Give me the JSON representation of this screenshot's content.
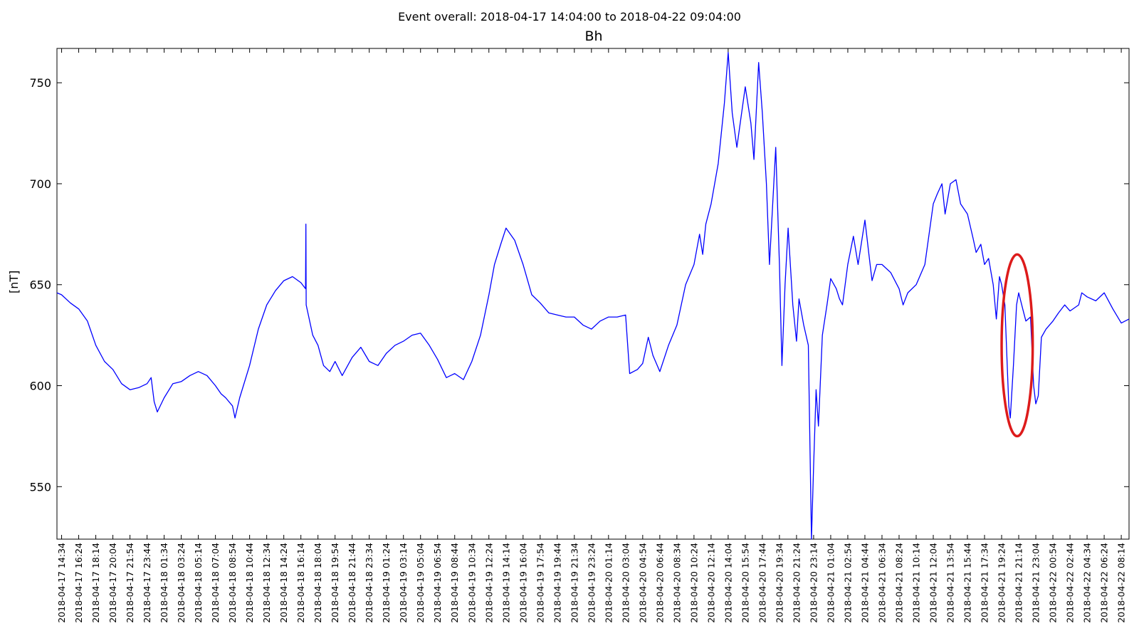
{
  "figure": {
    "suptitle": "Event overall: 2018-04-17 14:04:00 to 2018-04-22 09:04:00"
  },
  "chart_data": {
    "type": "line",
    "title": "Bh",
    "xlabel": "",
    "ylabel": "[nT]",
    "ylim": [
      524,
      767
    ],
    "yticks": [
      550,
      600,
      650,
      700,
      750
    ],
    "grid": false,
    "x_tick_labels": [
      "2018-04-17 14:34",
      "2018-04-17 16:24",
      "2018-04-17 18:14",
      "2018-04-17 20:04",
      "2018-04-17 21:54",
      "2018-04-17 23:44",
      "2018-04-18 01:34",
      "2018-04-18 03:24",
      "2018-04-18 05:14",
      "2018-04-18 07:04",
      "2018-04-18 08:54",
      "2018-04-18 10:44",
      "2018-04-18 12:34",
      "2018-04-18 14:24",
      "2018-04-18 16:14",
      "2018-04-18 18:04",
      "2018-04-18 19:54",
      "2018-04-18 21:44",
      "2018-04-18 23:34",
      "2018-04-19 01:24",
      "2018-04-19 03:14",
      "2018-04-19 05:04",
      "2018-04-19 06:54",
      "2018-04-19 08:44",
      "2018-04-19 10:34",
      "2018-04-19 12:24",
      "2018-04-19 14:14",
      "2018-04-19 16:04",
      "2018-04-19 17:54",
      "2018-04-19 19:44",
      "2018-04-19 21:34",
      "2018-04-19 23:24",
      "2018-04-20 01:14",
      "2018-04-20 03:04",
      "2018-04-20 04:54",
      "2018-04-20 06:44",
      "2018-04-20 08:34",
      "2018-04-20 10:24",
      "2018-04-20 12:14",
      "2018-04-20 14:04",
      "2018-04-20 15:54",
      "2018-04-20 17:44",
      "2018-04-20 19:34",
      "2018-04-20 21:24",
      "2018-04-20 23:14",
      "2018-04-21 01:04",
      "2018-04-21 02:54",
      "2018-04-21 04:44",
      "2018-04-21 06:34",
      "2018-04-21 08:24",
      "2018-04-21 10:14",
      "2018-04-21 12:04",
      "2018-04-21 13:54",
      "2018-04-21 15:44",
      "2018-04-21 17:34",
      "2018-04-21 19:24",
      "2018-04-21 21:14",
      "2018-04-21 23:04",
      "2018-04-22 00:54",
      "2018-04-22 02:44",
      "2018-04-22 04:34",
      "2018-04-22 06:24",
      "2018-04-22 08:14"
    ],
    "series": [
      {
        "color": "#0000ff",
        "points": [
          [
            "2018-04-17 14:04",
            646
          ],
          [
            "2018-04-17 14:34",
            645
          ],
          [
            "2018-04-17 15:30",
            641
          ],
          [
            "2018-04-17 16:24",
            638
          ],
          [
            "2018-04-17 17:20",
            632
          ],
          [
            "2018-04-17 18:14",
            620
          ],
          [
            "2018-04-17 19:10",
            612
          ],
          [
            "2018-04-17 20:04",
            608
          ],
          [
            "2018-04-17 21:00",
            601
          ],
          [
            "2018-04-17 21:54",
            598
          ],
          [
            "2018-04-17 22:50",
            599
          ],
          [
            "2018-04-17 23:44",
            601
          ],
          [
            "2018-04-18 00:10",
            604
          ],
          [
            "2018-04-18 00:30",
            592
          ],
          [
            "2018-04-18 00:50",
            587
          ],
          [
            "2018-04-18 01:34",
            594
          ],
          [
            "2018-04-18 02:30",
            601
          ],
          [
            "2018-04-18 03:24",
            602
          ],
          [
            "2018-04-18 04:20",
            605
          ],
          [
            "2018-04-18 05:14",
            607
          ],
          [
            "2018-04-18 06:10",
            605
          ],
          [
            "2018-04-18 07:04",
            600
          ],
          [
            "2018-04-18 07:40",
            596
          ],
          [
            "2018-04-18 08:10",
            594
          ],
          [
            "2018-04-18 08:54",
            590
          ],
          [
            "2018-04-18 09:10",
            584
          ],
          [
            "2018-04-18 09:40",
            594
          ],
          [
            "2018-04-18 10:44",
            610
          ],
          [
            "2018-04-18 11:40",
            628
          ],
          [
            "2018-04-18 12:34",
            640
          ],
          [
            "2018-04-18 13:30",
            647
          ],
          [
            "2018-04-18 14:24",
            652
          ],
          [
            "2018-04-18 15:20",
            654
          ],
          [
            "2018-04-18 16:14",
            651
          ],
          [
            "2018-04-18 16:44",
            648
          ],
          [
            "2018-04-18 16:46",
            680
          ],
          [
            "2018-04-18 16:48",
            640
          ],
          [
            "2018-04-18 17:30",
            625
          ],
          [
            "2018-04-18 18:04",
            620
          ],
          [
            "2018-04-18 18:40",
            610
          ],
          [
            "2018-04-18 19:20",
            607
          ],
          [
            "2018-04-18 19:54",
            612
          ],
          [
            "2018-04-18 20:40",
            605
          ],
          [
            "2018-04-18 21:44",
            614
          ],
          [
            "2018-04-18 22:40",
            619
          ],
          [
            "2018-04-18 23:34",
            612
          ],
          [
            "2018-04-19 00:30",
            610
          ],
          [
            "2018-04-19 01:24",
            616
          ],
          [
            "2018-04-19 02:20",
            620
          ],
          [
            "2018-04-19 03:14",
            622
          ],
          [
            "2018-04-19 04:10",
            625
          ],
          [
            "2018-04-19 05:04",
            626
          ],
          [
            "2018-04-19 06:00",
            620
          ],
          [
            "2018-04-19 06:54",
            613
          ],
          [
            "2018-04-19 07:50",
            604
          ],
          [
            "2018-04-19 08:44",
            606
          ],
          [
            "2018-04-19 09:40",
            603
          ],
          [
            "2018-04-19 10:34",
            612
          ],
          [
            "2018-04-19 11:30",
            625
          ],
          [
            "2018-04-19 12:24",
            645
          ],
          [
            "2018-04-19 13:00",
            660
          ],
          [
            "2018-04-19 13:40",
            670
          ],
          [
            "2018-04-19 14:14",
            678
          ],
          [
            "2018-04-19 15:10",
            672
          ],
          [
            "2018-04-19 16:04",
            660
          ],
          [
            "2018-04-19 17:00",
            645
          ],
          [
            "2018-04-19 17:54",
            641
          ],
          [
            "2018-04-19 18:50",
            636
          ],
          [
            "2018-04-19 19:44",
            635
          ],
          [
            "2018-04-19 20:40",
            634
          ],
          [
            "2018-04-19 21:34",
            634
          ],
          [
            "2018-04-19 22:30",
            630
          ],
          [
            "2018-04-19 23:24",
            628
          ],
          [
            "2018-04-20 00:20",
            632
          ],
          [
            "2018-04-20 01:14",
            634
          ],
          [
            "2018-04-20 02:10",
            634
          ],
          [
            "2018-04-20 03:04",
            635
          ],
          [
            "2018-04-20 03:30",
            606
          ],
          [
            "2018-04-20 04:20",
            608
          ],
          [
            "2018-04-20 04:54",
            611
          ],
          [
            "2018-04-20 05:30",
            624
          ],
          [
            "2018-04-20 06:00",
            615
          ],
          [
            "2018-04-20 06:44",
            607
          ],
          [
            "2018-04-20 07:40",
            620
          ],
          [
            "2018-04-20 08:34",
            630
          ],
          [
            "2018-04-20 09:30",
            650
          ],
          [
            "2018-04-20 10:24",
            660
          ],
          [
            "2018-04-20 11:00",
            675
          ],
          [
            "2018-04-20 11:20",
            665
          ],
          [
            "2018-04-20 11:40",
            680
          ],
          [
            "2018-04-20 12:14",
            690
          ],
          [
            "2018-04-20 13:00",
            710
          ],
          [
            "2018-04-20 13:40",
            740
          ],
          [
            "2018-04-20 14:04",
            765
          ],
          [
            "2018-04-20 14:30",
            735
          ],
          [
            "2018-04-20 15:00",
            718
          ],
          [
            "2018-04-20 15:54",
            748
          ],
          [
            "2018-04-20 16:30",
            730
          ],
          [
            "2018-04-20 16:50",
            712
          ],
          [
            "2018-04-20 17:20",
            760
          ],
          [
            "2018-04-20 17:44",
            735
          ],
          [
            "2018-04-20 18:10",
            700
          ],
          [
            "2018-04-20 18:30",
            660
          ],
          [
            "2018-04-20 19:10",
            718
          ],
          [
            "2018-04-20 19:34",
            660
          ],
          [
            "2018-04-20 19:50",
            610
          ],
          [
            "2018-04-20 20:10",
            650
          ],
          [
            "2018-04-20 20:30",
            678
          ],
          [
            "2018-04-20 21:00",
            640
          ],
          [
            "2018-04-20 21:24",
            622
          ],
          [
            "2018-04-20 21:40",
            643
          ],
          [
            "2018-04-20 22:10",
            630
          ],
          [
            "2018-04-20 22:40",
            620
          ],
          [
            "2018-04-20 22:55",
            548
          ],
          [
            "2018-04-20 23:00",
            524
          ],
          [
            "2018-04-20 23:14",
            560
          ],
          [
            "2018-04-20 23:30",
            598
          ],
          [
            "2018-04-20 23:45",
            580
          ],
          [
            "2018-04-21 00:10",
            625
          ],
          [
            "2018-04-21 00:40",
            640
          ],
          [
            "2018-04-21 01:04",
            653
          ],
          [
            "2018-04-21 01:40",
            648
          ],
          [
            "2018-04-21 02:00",
            643
          ],
          [
            "2018-04-21 02:20",
            640
          ],
          [
            "2018-04-21 02:54",
            660
          ],
          [
            "2018-04-21 03:30",
            674
          ],
          [
            "2018-04-21 04:00",
            660
          ],
          [
            "2018-04-21 04:44",
            682
          ],
          [
            "2018-04-21 05:10",
            665
          ],
          [
            "2018-04-21 05:30",
            652
          ],
          [
            "2018-04-21 06:00",
            660
          ],
          [
            "2018-04-21 06:34",
            660
          ],
          [
            "2018-04-21 07:30",
            656
          ],
          [
            "2018-04-21 08:24",
            648
          ],
          [
            "2018-04-21 08:50",
            640
          ],
          [
            "2018-04-21 09:20",
            646
          ],
          [
            "2018-04-21 10:14",
            650
          ],
          [
            "2018-04-21 11:10",
            660
          ],
          [
            "2018-04-21 12:04",
            690
          ],
          [
            "2018-04-21 12:30",
            695
          ],
          [
            "2018-04-21 13:00",
            700
          ],
          [
            "2018-04-21 13:20",
            685
          ],
          [
            "2018-04-21 13:54",
            700
          ],
          [
            "2018-04-21 14:30",
            702
          ],
          [
            "2018-04-21 15:00",
            690
          ],
          [
            "2018-04-21 15:44",
            685
          ],
          [
            "2018-04-21 16:20",
            673
          ],
          [
            "2018-04-21 16:40",
            666
          ],
          [
            "2018-04-21 17:10",
            670
          ],
          [
            "2018-04-21 17:34",
            660
          ],
          [
            "2018-04-21 18:00",
            663
          ],
          [
            "2018-04-21 18:30",
            650
          ],
          [
            "2018-04-21 18:50",
            633
          ],
          [
            "2018-04-21 19:10",
            654
          ],
          [
            "2018-04-21 19:24",
            650
          ],
          [
            "2018-04-21 19:45",
            640
          ],
          [
            "2018-04-21 20:10",
            590
          ],
          [
            "2018-04-21 20:20",
            584
          ],
          [
            "2018-04-21 20:40",
            610
          ],
          [
            "2018-04-21 21:00",
            640
          ],
          [
            "2018-04-21 21:14",
            646
          ],
          [
            "2018-04-21 21:40",
            638
          ],
          [
            "2018-04-21 22:00",
            632
          ],
          [
            "2018-04-21 22:30",
            634
          ],
          [
            "2018-04-21 22:50",
            600
          ],
          [
            "2018-04-21 23:04",
            591
          ],
          [
            "2018-04-21 23:20",
            595
          ],
          [
            "2018-04-21 23:40",
            624
          ],
          [
            "2018-04-22 00:10",
            628
          ],
          [
            "2018-04-22 00:54",
            632
          ],
          [
            "2018-04-22 01:30",
            636
          ],
          [
            "2018-04-22 02:10",
            640
          ],
          [
            "2018-04-22 02:44",
            637
          ],
          [
            "2018-04-22 03:40",
            640
          ],
          [
            "2018-04-22 04:00",
            646
          ],
          [
            "2018-04-22 04:34",
            644
          ],
          [
            "2018-04-22 05:30",
            642
          ],
          [
            "2018-04-22 06:24",
            646
          ],
          [
            "2018-04-22 07:20",
            638
          ],
          [
            "2018-04-22 08:14",
            631
          ],
          [
            "2018-04-22 09:04",
            633
          ]
        ]
      }
    ],
    "annotations": [
      {
        "type": "ellipse",
        "color": "#dd1b1b",
        "x_center": "2018-04-21 21:04",
        "y_center": 620,
        "x_halfwidth_min": 100,
        "y_halfwidth": 45
      }
    ]
  }
}
